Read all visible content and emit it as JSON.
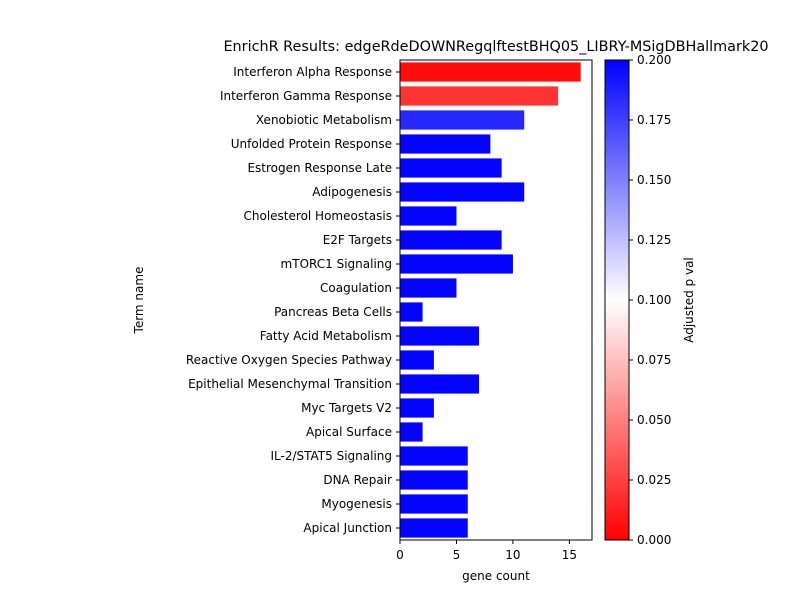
{
  "chart_data": {
    "type": "bar",
    "orientation": "horizontal",
    "title": "EnrichR Results: edgeRdeDOWNRegqlftestBHQ05_LIBRY-MSigDBHallmark20",
    "xlabel": "gene count",
    "ylabel": "Term name",
    "xlim": [
      0,
      17
    ],
    "xticks": [
      0,
      5,
      10,
      15
    ],
    "grid": false,
    "categories": [
      "Interferon Alpha Response",
      "Interferon Gamma Response",
      "Xenobiotic Metabolism",
      "Unfolded Protein Response",
      "Estrogen Response Late",
      "Adipogenesis",
      "Cholesterol Homeostasis",
      "E2F Targets",
      "mTORC1 Signaling",
      "Coagulation",
      "Pancreas Beta Cells",
      "Fatty Acid Metabolism",
      "Reactive Oxygen Species Pathway",
      "Epithelial Mesenchymal Transition",
      "Myc Targets V2",
      "Apical Surface",
      "IL-2/STAT5 Signaling",
      "DNA Repair",
      "Myogenesis",
      "Apical Junction"
    ],
    "values": [
      16,
      14,
      11,
      8,
      9,
      11,
      5,
      9,
      10,
      5,
      2,
      7,
      3,
      7,
      3,
      2,
      6,
      6,
      6,
      6
    ],
    "adjusted_p": [
      0.005,
      0.02,
      0.185,
      0.199,
      0.199,
      0.199,
      0.199,
      0.199,
      0.199,
      0.199,
      0.199,
      0.199,
      0.199,
      0.199,
      0.199,
      0.199,
      0.199,
      0.199,
      0.199,
      0.199
    ],
    "colorbar": {
      "label": "Adjusted p val",
      "range": [
        0,
        0.2
      ],
      "ticks": [
        "0.000",
        "0.025",
        "0.050",
        "0.075",
        "0.100",
        "0.125",
        "0.150",
        "0.175",
        "0.200"
      ],
      "colors": [
        "#ff0000",
        "#ffffff",
        "#0000ff"
      ]
    }
  }
}
